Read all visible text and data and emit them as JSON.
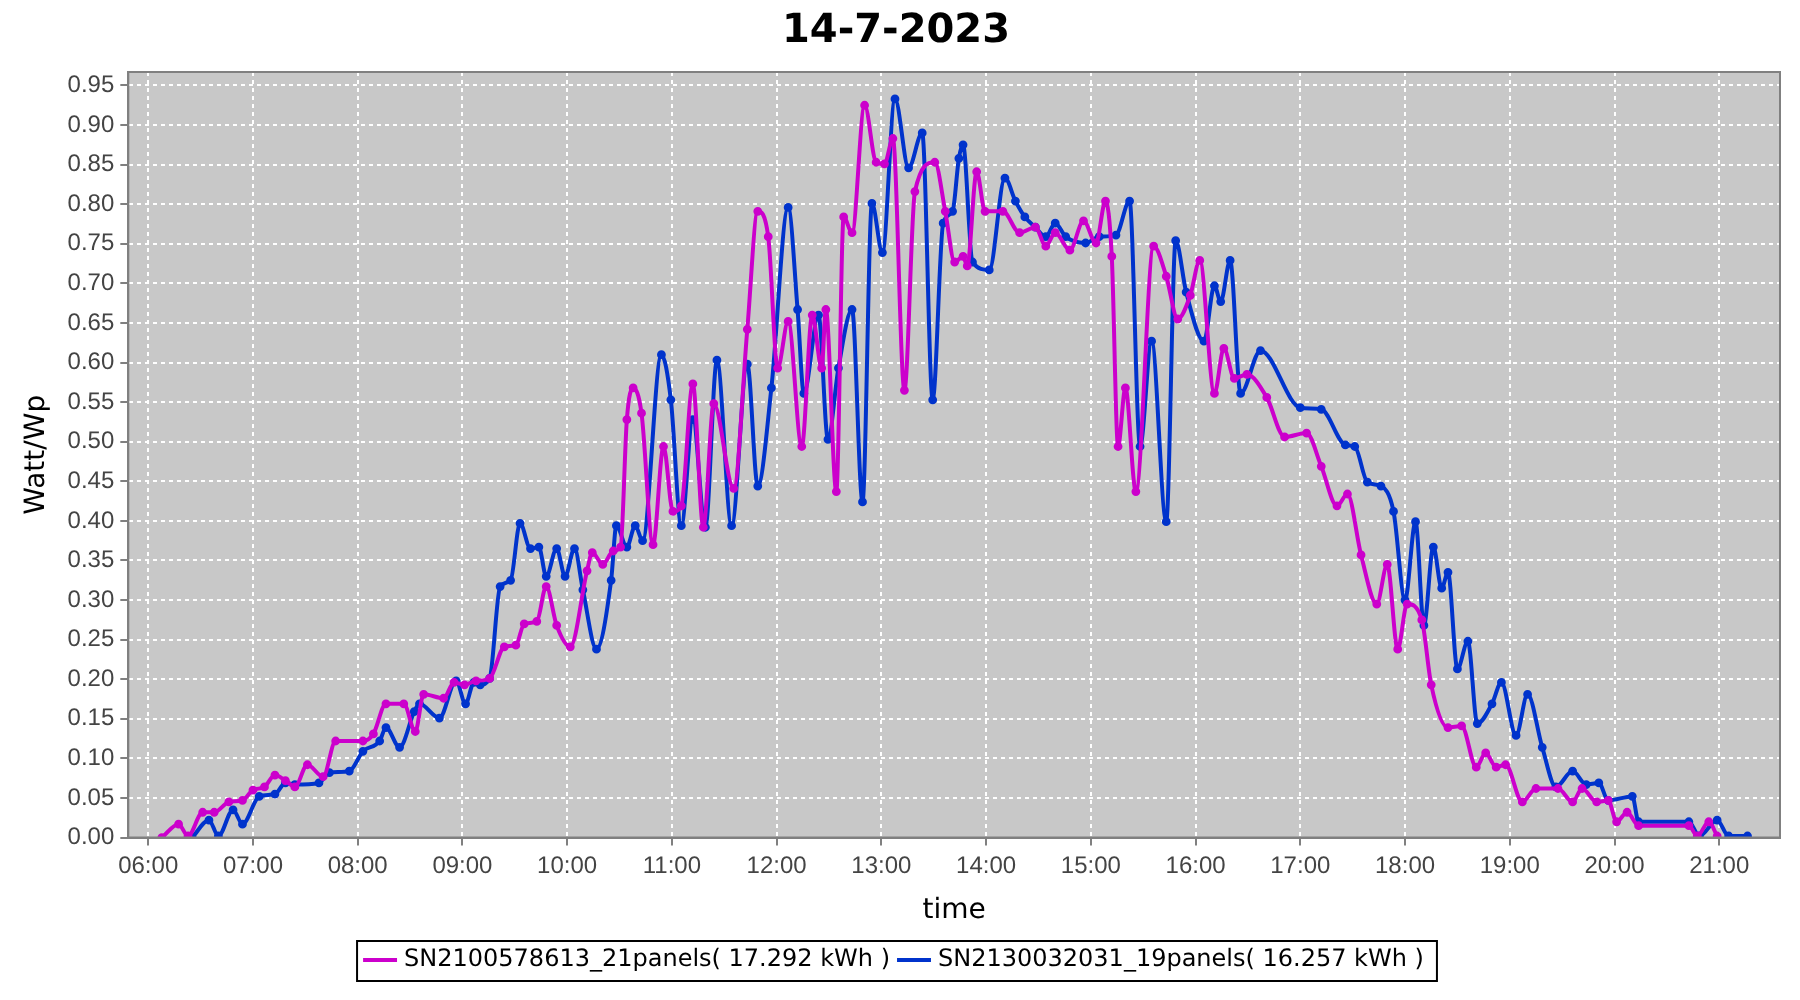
{
  "chart_data": {
    "type": "line",
    "title": "14-7-2023",
    "xlabel": "time",
    "ylabel": "Watt/Wp",
    "legend": "bottom",
    "grid": true,
    "marker": "circle",
    "line_style": "solid",
    "xlim": [
      5.81,
      21.58
    ],
    "xticks": [
      {
        "value": 6,
        "label": "06:00"
      },
      {
        "value": 7,
        "label": "07:00"
      },
      {
        "value": 8,
        "label": "08:00"
      },
      {
        "value": 9,
        "label": "09:00"
      },
      {
        "value": 10,
        "label": "10:00"
      },
      {
        "value": 11,
        "label": "11:00"
      },
      {
        "value": 12,
        "label": "12:00"
      },
      {
        "value": 13,
        "label": "13:00"
      },
      {
        "value": 14,
        "label": "14:00"
      },
      {
        "value": 15,
        "label": "15:00"
      },
      {
        "value": 16,
        "label": "16:00"
      },
      {
        "value": 17,
        "label": "17:00"
      },
      {
        "value": 18,
        "label": "18:00"
      },
      {
        "value": 19,
        "label": "19:00"
      },
      {
        "value": 20,
        "label": "20:00"
      },
      {
        "value": 21,
        "label": "21:00"
      }
    ],
    "ylim": [
      0,
      0.967
    ],
    "yticks": [
      {
        "value": 0,
        "label": "0.00"
      },
      {
        "value": 0.05,
        "label": "0.05"
      },
      {
        "value": 0.1,
        "label": "0.10"
      },
      {
        "value": 0.15,
        "label": "0.15"
      },
      {
        "value": 0.2,
        "label": "0.20"
      },
      {
        "value": 0.25,
        "label": "0.25"
      },
      {
        "value": 0.3,
        "label": "0.30"
      },
      {
        "value": 0.35,
        "label": "0.35"
      },
      {
        "value": 0.4,
        "label": "0.40"
      },
      {
        "value": 0.45,
        "label": "0.45"
      },
      {
        "value": 0.5,
        "label": "0.50"
      },
      {
        "value": 0.55,
        "label": "0.55"
      },
      {
        "value": 0.6,
        "label": "0.60"
      },
      {
        "value": 0.65,
        "label": "0.65"
      },
      {
        "value": 0.7,
        "label": "0.70"
      },
      {
        "value": 0.75,
        "label": "0.75"
      },
      {
        "value": 0.8,
        "label": "0.80"
      },
      {
        "value": 0.85,
        "label": "0.85"
      },
      {
        "value": 0.9,
        "label": "0.90"
      },
      {
        "value": 0.95,
        "label": "0.95"
      }
    ],
    "series": [
      {
        "name": "SN2100578613_21panels( 17.292 kWh )",
        "color": "#cc00cc",
        "x": [
          6.13,
          6.29,
          6.38,
          6.52,
          6.63,
          6.77,
          6.9,
          7.0,
          7.11,
          7.21,
          7.31,
          7.4,
          7.52,
          7.67,
          7.79,
          8.05,
          8.15,
          8.27,
          8.44,
          8.55,
          8.63,
          8.82,
          8.92,
          9.02,
          9.13,
          9.26,
          9.4,
          9.51,
          9.59,
          9.71,
          9.8,
          9.9,
          10.03,
          10.19,
          10.24,
          10.34,
          10.44,
          10.51,
          10.57,
          10.63,
          10.71,
          10.82,
          10.92,
          11.01,
          11.09,
          11.2,
          11.3,
          11.4,
          11.59,
          11.72,
          11.82,
          11.92,
          12.01,
          12.11,
          12.24,
          12.34,
          12.43,
          12.47,
          12.57,
          12.64,
          12.72,
          12.84,
          12.95,
          13.03,
          13.11,
          13.22,
          13.32,
          13.51,
          13.61,
          13.7,
          13.78,
          13.82,
          13.91,
          13.99,
          14.16,
          14.32,
          14.47,
          14.57,
          14.66,
          14.8,
          14.93,
          15.05,
          15.14,
          15.2,
          15.26,
          15.33,
          15.43,
          15.6,
          15.72,
          15.83,
          15.95,
          16.04,
          16.18,
          16.27,
          16.37,
          16.49,
          16.68,
          16.85,
          17.06,
          17.2,
          17.35,
          17.45,
          17.58,
          17.73,
          17.83,
          17.93,
          18.02,
          18.16,
          18.25,
          18.41,
          18.54,
          18.68,
          18.77,
          18.87,
          18.96,
          19.12,
          19.25,
          19.46,
          19.6,
          19.69,
          19.83,
          19.94,
          20.02,
          20.12,
          20.23,
          20.71,
          20.79,
          20.9,
          20.98
        ],
        "values": [
          0,
          0.017,
          0.002,
          0.032,
          0.032,
          0.045,
          0.047,
          0.06,
          0.064,
          0.079,
          0.072,
          0.064,
          0.092,
          0.077,
          0.122,
          0.122,
          0.131,
          0.169,
          0.169,
          0.134,
          0.181,
          0.176,
          0.196,
          0.193,
          0.198,
          0.201,
          0.241,
          0.243,
          0.27,
          0.273,
          0.317,
          0.268,
          0.241,
          0.337,
          0.36,
          0.345,
          0.362,
          0.367,
          0.528,
          0.568,
          0.536,
          0.37,
          0.494,
          0.412,
          0.419,
          0.573,
          0.392,
          0.548,
          0.441,
          0.642,
          0.791,
          0.759,
          0.593,
          0.652,
          0.494,
          0.66,
          0.593,
          0.667,
          0.437,
          0.784,
          0.764,
          0.925,
          0.853,
          0.851,
          0.883,
          0.565,
          0.816,
          0.853,
          0.791,
          0.727,
          0.734,
          0.722,
          0.841,
          0.791,
          0.791,
          0.764,
          0.771,
          0.747,
          0.764,
          0.742,
          0.779,
          0.751,
          0.804,
          0.734,
          0.494,
          0.568,
          0.437,
          0.747,
          0.709,
          0.655,
          0.685,
          0.729,
          0.561,
          0.618,
          0.58,
          0.585,
          0.556,
          0.506,
          0.511,
          0.469,
          0.419,
          0.434,
          0.357,
          0.295,
          0.345,
          0.238,
          0.295,
          0.275,
          0.193,
          0.139,
          0.141,
          0.089,
          0.107,
          0.089,
          0.092,
          0.045,
          0.062,
          0.062,
          0.045,
          0.062,
          0.045,
          0.047,
          0.02,
          0.032,
          0.015,
          0.015,
          0.002,
          0.02,
          0.002
        ]
      },
      {
        "name": "SN2130032031_19panels( 16.257 kWh )",
        "color": "#0033cc",
        "x": [
          6.42,
          6.58,
          6.67,
          6.81,
          6.9,
          7.06,
          7.21,
          7.31,
          7.4,
          7.63,
          7.73,
          7.92,
          8.05,
          8.21,
          8.27,
          8.4,
          8.54,
          8.59,
          8.78,
          8.94,
          9.03,
          9.11,
          9.17,
          9.26,
          9.36,
          9.46,
          9.55,
          9.65,
          9.73,
          9.8,
          9.9,
          9.98,
          10.07,
          10.15,
          10.28,
          10.42,
          10.47,
          10.57,
          10.65,
          10.72,
          10.9,
          10.99,
          11.09,
          11.2,
          11.32,
          11.43,
          11.57,
          11.72,
          11.82,
          11.95,
          12.11,
          12.2,
          12.26,
          12.4,
          12.49,
          12.59,
          12.72,
          12.82,
          12.91,
          13.01,
          13.13,
          13.26,
          13.39,
          13.49,
          13.59,
          13.68,
          13.74,
          13.78,
          13.87,
          14.03,
          14.18,
          14.28,
          14.37,
          14.47,
          14.57,
          14.66,
          14.76,
          14.95,
          15.08,
          15.24,
          15.37,
          15.47,
          15.58,
          15.72,
          15.81,
          15.91,
          16.08,
          16.18,
          16.24,
          16.33,
          16.43,
          16.62,
          17.0,
          17.2,
          17.43,
          17.52,
          17.64,
          17.77,
          17.89,
          18.0,
          18.1,
          18.18,
          18.27,
          18.35,
          18.41,
          18.5,
          18.6,
          18.69,
          18.83,
          18.92,
          19.06,
          19.17,
          19.31,
          19.44,
          19.6,
          19.73,
          19.85,
          19.94,
          20.17,
          20.23,
          20.71,
          20.81,
          20.98,
          21.09,
          21.27
        ],
        "values": [
          0,
          0.022,
          0.002,
          0.035,
          0.017,
          0.052,
          0.055,
          0.069,
          0.067,
          0.069,
          0.082,
          0.084,
          0.109,
          0.122,
          0.139,
          0.114,
          0.159,
          0.169,
          0.151,
          0.198,
          0.169,
          0.196,
          0.193,
          0.201,
          0.317,
          0.325,
          0.397,
          0.365,
          0.367,
          0.33,
          0.365,
          0.33,
          0.365,
          0.313,
          0.238,
          0.325,
          0.394,
          0.367,
          0.394,
          0.375,
          0.61,
          0.553,
          0.394,
          0.528,
          0.392,
          0.603,
          0.394,
          0.598,
          0.444,
          0.568,
          0.796,
          0.667,
          0.561,
          0.66,
          0.503,
          0.593,
          0.667,
          0.424,
          0.801,
          0.739,
          0.933,
          0.846,
          0.89,
          0.553,
          0.776,
          0.791,
          0.858,
          0.875,
          0.727,
          0.717,
          0.833,
          0.804,
          0.784,
          0.771,
          0.759,
          0.776,
          0.759,
          0.751,
          0.759,
          0.761,
          0.804,
          0.494,
          0.627,
          0.399,
          0.754,
          0.689,
          0.627,
          0.697,
          0.677,
          0.729,
          0.561,
          0.615,
          0.543,
          0.541,
          0.496,
          0.494,
          0.449,
          0.444,
          0.412,
          0.3,
          0.399,
          0.268,
          0.367,
          0.315,
          0.335,
          0.213,
          0.248,
          0.144,
          0.169,
          0.196,
          0.129,
          0.181,
          0.114,
          0.064,
          0.084,
          0.067,
          0.069,
          0.047,
          0.052,
          0.02,
          0.02,
          0.002,
          0.022,
          0.002,
          0.002
        ]
      }
    ]
  }
}
